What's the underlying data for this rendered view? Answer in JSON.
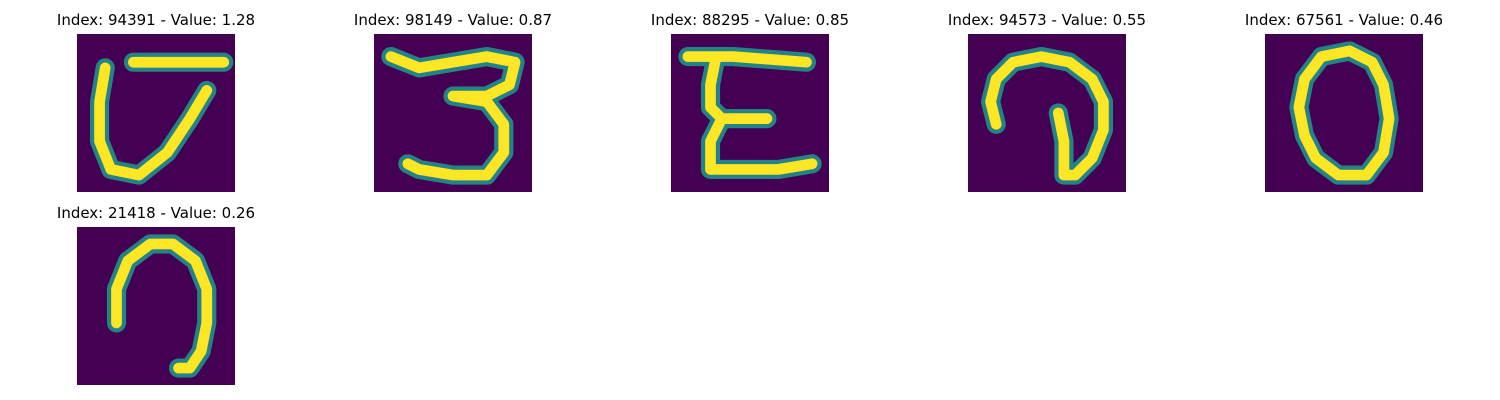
{
  "colors": {
    "background": "#440154",
    "low": "#31688e",
    "mid": "#21918c",
    "high": "#5ec962",
    "peak": "#fde725"
  },
  "panels": [
    {
      "title": "Index: 94391 - Value: 1.28",
      "glyph": "digit-zero-open-top"
    },
    {
      "title": "Index: 98149 - Value: 0.87",
      "glyph": "digit-three"
    },
    {
      "title": "Index: 88295 - Value: 0.85",
      "glyph": "letter-e-shape"
    },
    {
      "title": "Index: 94573 - Value: 0.55",
      "glyph": "curl-shape"
    },
    {
      "title": "Index: 67561 - Value: 0.46",
      "glyph": "digit-zero"
    },
    {
      "title": "Index: 21418 - Value: 0.26",
      "glyph": "hook-shape"
    }
  ]
}
